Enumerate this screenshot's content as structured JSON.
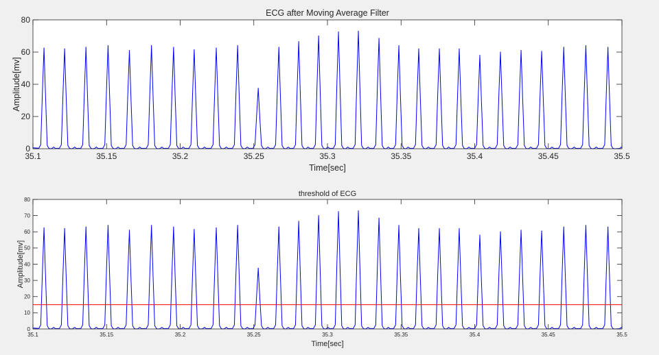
{
  "chart_data": [
    {
      "type": "line",
      "title": "ECG after Moving Average Filter",
      "xlabel": "Time[sec]",
      "ylabel": "Amplitude[mv]",
      "xlim": [
        35.1,
        35.5
      ],
      "ylim": [
        0,
        80
      ],
      "xticks": [
        "35.1",
        "35.15",
        "35.2",
        "35.25",
        "35.3",
        "35.35",
        "35.4",
        "35.45",
        "35.5"
      ],
      "yticks": [
        "0",
        "20",
        "40",
        "60",
        "80"
      ],
      "grid": false,
      "series": [
        {
          "color": "#0000ff",
          "peaks": [
            {
              "x": 35.1075,
              "y": 62.5
            },
            {
              "x": 35.1215,
              "y": 62
            },
            {
              "x": 35.136,
              "y": 63
            },
            {
              "x": 35.151,
              "y": 64
            },
            {
              "x": 35.1655,
              "y": 61
            },
            {
              "x": 35.1805,
              "y": 64
            },
            {
              "x": 35.1955,
              "y": 63
            },
            {
              "x": 35.2095,
              "y": 61.5
            },
            {
              "x": 35.2245,
              "y": 62.5
            },
            {
              "x": 35.239,
              "y": 64
            },
            {
              "x": 35.253,
              "y": 37.5
            },
            {
              "x": 35.267,
              "y": 63
            },
            {
              "x": 35.2805,
              "y": 66.5
            },
            {
              "x": 35.294,
              "y": 70
            },
            {
              "x": 35.3075,
              "y": 72.5
            },
            {
              "x": 35.321,
              "y": 73
            },
            {
              "x": 35.335,
              "y": 68.5
            },
            {
              "x": 35.3485,
              "y": 64
            },
            {
              "x": 35.362,
              "y": 62
            },
            {
              "x": 35.376,
              "y": 62
            },
            {
              "x": 35.3895,
              "y": 62
            },
            {
              "x": 35.4035,
              "y": 58
            },
            {
              "x": 35.4175,
              "y": 60
            },
            {
              "x": 35.4315,
              "y": 61
            },
            {
              "x": 35.4455,
              "y": 60.5
            },
            {
              "x": 35.4605,
              "y": 63
            },
            {
              "x": 35.4755,
              "y": 64
            },
            {
              "x": 35.4905,
              "y": 63
            }
          ]
        }
      ]
    },
    {
      "type": "line",
      "title": "threshold of ECG",
      "xlabel": "Time[sec]",
      "ylabel": "Amplitude[mv]",
      "xlim": [
        35.1,
        35.5
      ],
      "ylim": [
        0,
        80
      ],
      "xticks": [
        "35.1",
        "35.15",
        "35.2",
        "35.25",
        "35.3",
        "35.35",
        "35.4",
        "35.45",
        "35.5"
      ],
      "yticks": [
        "0",
        "10",
        "20",
        "30",
        "40",
        "50",
        "60",
        "70",
        "80"
      ],
      "grid": false,
      "threshold": {
        "y": 15,
        "color": "#ff0000"
      },
      "series": [
        {
          "color": "#0000ff",
          "peaks": [
            {
              "x": 35.1075,
              "y": 62.5
            },
            {
              "x": 35.1215,
              "y": 62
            },
            {
              "x": 35.136,
              "y": 63
            },
            {
              "x": 35.151,
              "y": 64
            },
            {
              "x": 35.1655,
              "y": 61
            },
            {
              "x": 35.1805,
              "y": 64
            },
            {
              "x": 35.1955,
              "y": 63
            },
            {
              "x": 35.2095,
              "y": 61.5
            },
            {
              "x": 35.2245,
              "y": 62.5
            },
            {
              "x": 35.239,
              "y": 64
            },
            {
              "x": 35.253,
              "y": 37.5
            },
            {
              "x": 35.267,
              "y": 63
            },
            {
              "x": 35.2805,
              "y": 66.5
            },
            {
              "x": 35.294,
              "y": 70
            },
            {
              "x": 35.3075,
              "y": 72.5
            },
            {
              "x": 35.321,
              "y": 73
            },
            {
              "x": 35.335,
              "y": 68.5
            },
            {
              "x": 35.3485,
              "y": 64
            },
            {
              "x": 35.362,
              "y": 62
            },
            {
              "x": 35.376,
              "y": 62
            },
            {
              "x": 35.3895,
              "y": 62
            },
            {
              "x": 35.4035,
              "y": 58
            },
            {
              "x": 35.4175,
              "y": 60
            },
            {
              "x": 35.4315,
              "y": 61
            },
            {
              "x": 35.4455,
              "y": 60.5
            },
            {
              "x": 35.4605,
              "y": 63
            },
            {
              "x": 35.4755,
              "y": 64
            },
            {
              "x": 35.4905,
              "y": 63
            }
          ]
        }
      ]
    }
  ]
}
